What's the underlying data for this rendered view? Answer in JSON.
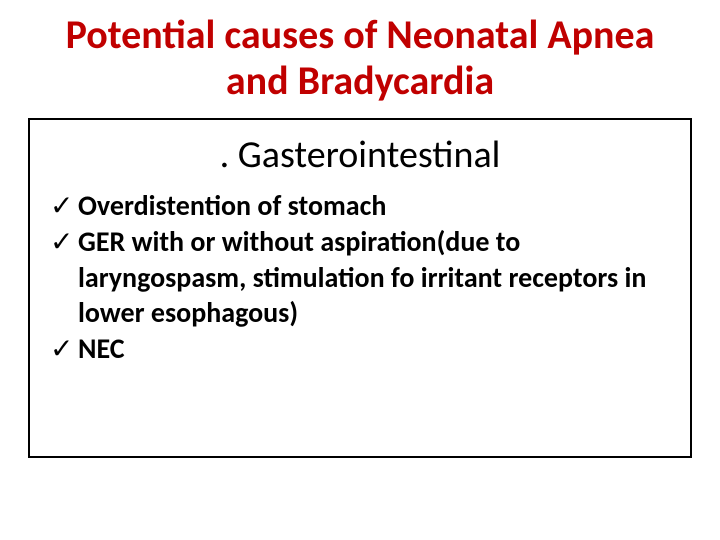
{
  "title": {
    "text": "Potential causes of Neonatal Apnea and Bradycardia",
    "color": "#c00000",
    "fontsize": 40
  },
  "subtitle": {
    "text": ". Gasterointestinal",
    "fontsize": 38
  },
  "items": [
    {
      "text": "Overdistention of stomach"
    },
    {
      "text": "GER with or without aspiration(due to laryngospasm, stimulation fo irritant receptors in lower esophagous)"
    },
    {
      "text": "NEC"
    }
  ],
  "item_fontsize": 28,
  "check_glyph": "✓",
  "box_border_color": "#000000",
  "background_color": "#ffffff"
}
